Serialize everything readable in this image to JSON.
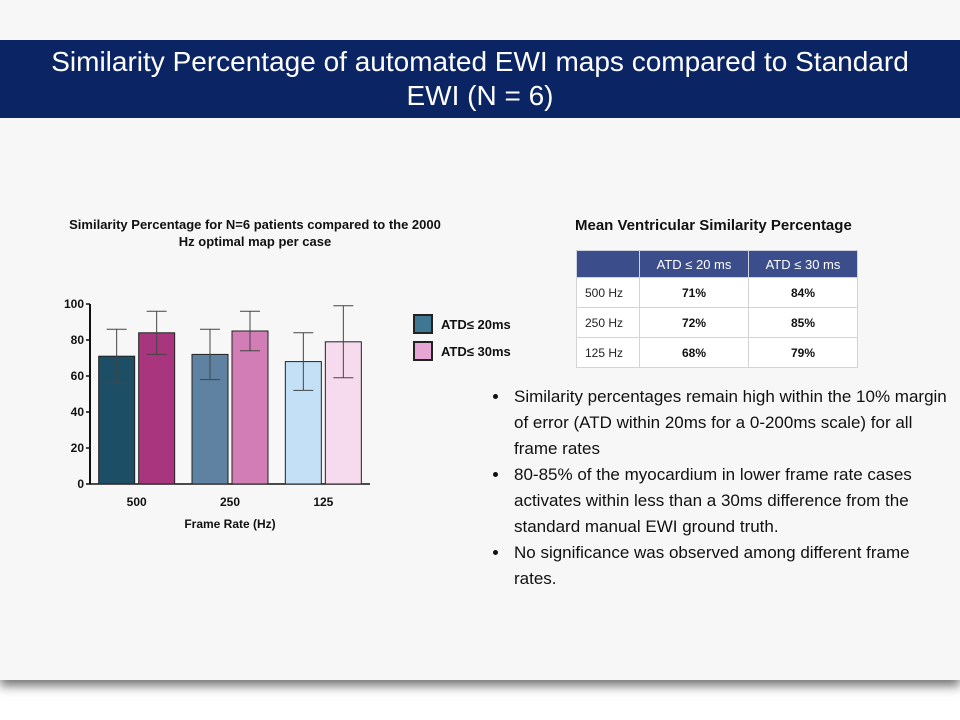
{
  "slide": {
    "title": "Similarity Percentage of automated EWI maps compared to Standard EWI (N = 6)"
  },
  "colors": {
    "title_bar": "#0b2463",
    "table_header": "#3b4d8a"
  },
  "chart_data": {
    "type": "bar",
    "title": "Similarity Percentage for N=6 patients compared to the 2000 Hz optimal map per case",
    "categories": [
      "500",
      "250",
      "125"
    ],
    "series": [
      {
        "name": "ATD≤ 20ms",
        "values": [
          71,
          72,
          68
        ],
        "error": [
          15,
          14,
          16
        ],
        "colors": [
          "#1c4f66",
          "#5f82a3",
          "#c4e0f6"
        ],
        "legend_color": "#3f7792"
      },
      {
        "name": "ATD≤ 30ms",
        "values": [
          84,
          85,
          79
        ],
        "error": [
          12,
          11,
          20
        ],
        "colors": [
          "#a8357d",
          "#d27db5",
          "#f6daee"
        ],
        "legend_color": "#e6a5d4"
      }
    ],
    "xlabel": "Frame Rate (Hz)",
    "ylabel": "",
    "ylim": [
      0,
      100
    ],
    "yticks": [
      "0",
      "20",
      "40",
      "60",
      "80",
      "100"
    ],
    "grid": false,
    "legend": "right"
  },
  "table": {
    "title": "Mean Ventricular Similarity Percentage",
    "headers": [
      "ATD ≤ 20 ms",
      "ATD ≤ 30 ms"
    ],
    "rows": [
      {
        "label": "500 Hz",
        "a": "71%",
        "b": "84%"
      },
      {
        "label": "250 Hz",
        "a": "72%",
        "b": "85%"
      },
      {
        "label": "125 Hz",
        "a": "68%",
        "b": "79%"
      }
    ]
  },
  "bullets": [
    "Similarity percentages remain high within the 10% margin of error (ATD within 20ms for a 0-200ms scale) for all frame rates",
    "80-85% of the myocardium in lower frame rate cases activates within less than a 30ms difference from the standard manual EWI ground truth.",
    "No significance was observed among different frame rates."
  ]
}
